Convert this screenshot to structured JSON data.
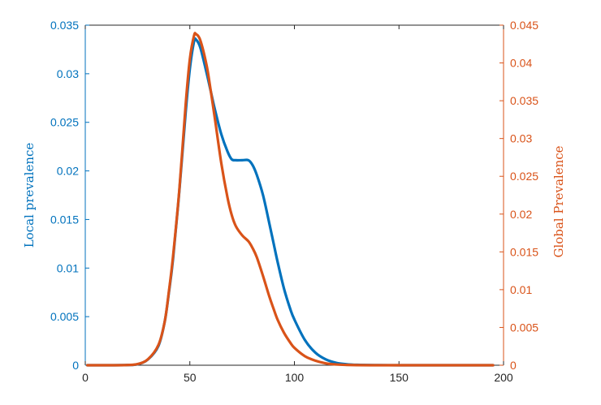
{
  "chart_data": {
    "type": "line",
    "title": "",
    "xlabel": "",
    "ylabel_left": "Local prevalence",
    "ylabel_right": "Global Prevalence",
    "xlim": [
      0,
      200
    ],
    "ylim_left": [
      0,
      0.035
    ],
    "ylim_right": [
      0,
      0.045
    ],
    "grid": false,
    "x_ticks": [
      "0",
      "50",
      "100",
      "150",
      "200"
    ],
    "y_ticks_left": [
      "0",
      "0.005",
      "0.01",
      "0.015",
      "0.02",
      "0.025",
      "0.03",
      "0.035"
    ],
    "y_ticks_right": [
      "0",
      "0.005",
      "0.01",
      "0.015",
      "0.02",
      "0.025",
      "0.03",
      "0.035",
      "0.04",
      "0.045"
    ],
    "colors": {
      "left": "#0072BD",
      "right": "#D95319"
    },
    "series": [
      {
        "axis": "left",
        "color": "#0072BD",
        "x": [
          1,
          10,
          20,
          25,
          30,
          35,
          38,
          40,
          42,
          45,
          48,
          50,
          52,
          53,
          55,
          58,
          60,
          62,
          65,
          68,
          70,
          72,
          75,
          78,
          80,
          82,
          85,
          88,
          90,
          92,
          95,
          98,
          100,
          105,
          110,
          115,
          120,
          125,
          130,
          140,
          150,
          160,
          170,
          180,
          195
        ],
        "y": [
          0,
          0,
          2e-05,
          0.0001,
          0.0006,
          0.002,
          0.0045,
          0.0075,
          0.011,
          0.018,
          0.026,
          0.0305,
          0.0333,
          0.0335,
          0.0327,
          0.0301,
          0.0282,
          0.0263,
          0.0238,
          0.022,
          0.0212,
          0.0211,
          0.0211,
          0.0211,
          0.0206,
          0.0196,
          0.0175,
          0.0146,
          0.0126,
          0.0106,
          0.0079,
          0.0058,
          0.0047,
          0.0026,
          0.0013,
          0.0006,
          0.00025,
          0.0001,
          4e-05,
          1e-05,
          0,
          0,
          0,
          0,
          0
        ]
      },
      {
        "axis": "right",
        "color": "#D95319",
        "x": [
          1,
          10,
          20,
          25,
          30,
          35,
          38,
          40,
          42,
          45,
          48,
          50,
          52,
          53,
          55,
          58,
          60,
          62,
          65,
          68,
          70,
          72,
          75,
          78,
          80,
          82,
          85,
          88,
          90,
          92,
          95,
          98,
          100,
          105,
          110,
          115,
          120,
          125,
          130,
          140,
          150,
          160,
          170,
          180,
          195
        ],
        "y": [
          0,
          0,
          3e-05,
          0.00015,
          0.0008,
          0.0027,
          0.0058,
          0.0098,
          0.0145,
          0.0233,
          0.0345,
          0.0405,
          0.0436,
          0.0438,
          0.043,
          0.0397,
          0.0363,
          0.0326,
          0.0268,
          0.0222,
          0.0199,
          0.0184,
          0.0172,
          0.0164,
          0.0155,
          0.0143,
          0.0118,
          0.0091,
          0.0075,
          0.006,
          0.0043,
          0.003,
          0.0023,
          0.0012,
          0.0006,
          0.00025,
          0.0001,
          4e-05,
          1e-05,
          0,
          0,
          0,
          0,
          0,
          0
        ]
      }
    ]
  }
}
